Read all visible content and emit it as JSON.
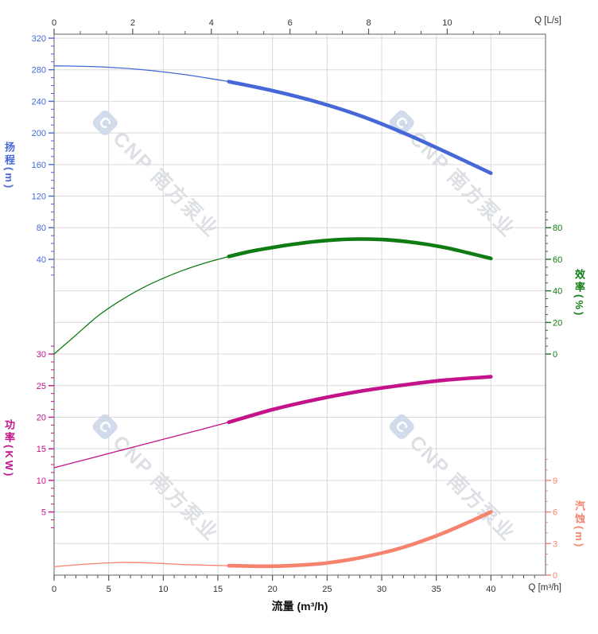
{
  "watermark": {
    "logo_char": "C",
    "text": "CNP 南方泵业",
    "logo_color": "#ccd7ea",
    "text_color": "#d9dce1"
  },
  "chart_data": {
    "type": "line",
    "title": "流量 (m³/h)",
    "grid": "on",
    "x_bottom": {
      "label": "Q [m³/h]",
      "min": 0,
      "max": 45,
      "major_ticks": [
        0,
        5,
        10,
        15,
        20,
        25,
        30,
        35,
        40
      ],
      "minor_step": 1,
      "tick_color": "#555555",
      "text_color": "#333333"
    },
    "x_top": {
      "label": "Q [L/s]",
      "m3h_per_unit": 3.6,
      "major_ticks": [
        0,
        2,
        4,
        6,
        8,
        10
      ],
      "minor_fraction_of_major": 3,
      "tick_color": "#555555",
      "text_color": "#333333"
    },
    "y_axes": [
      {
        "id": "head",
        "label": "扬程(m)",
        "color": "#4667D8",
        "major_ticks": [
          320,
          280,
          240,
          200,
          160,
          120,
          80,
          40
        ],
        "minor_step": 10
      },
      {
        "id": "eff",
        "label": "效率(%)",
        "color": "#0E7C12",
        "major_ticks": [
          80,
          60,
          40,
          20,
          0
        ],
        "minor_step": 5
      },
      {
        "id": "power",
        "label": "功率(KW)",
        "color": "#C4138A",
        "major_ticks": [
          30,
          25,
          20,
          15,
          10,
          5
        ],
        "minor_step": 1.25
      },
      {
        "id": "npsh",
        "label": "汽蚀(m)",
        "color": "#F5836E",
        "major_ticks": [
          9,
          6,
          3,
          0
        ],
        "minor_step": 1
      }
    ],
    "operating_range": {
      "q_from": 16,
      "q_to": 40
    },
    "series": [
      {
        "name": "head",
        "axis": "head",
        "color": "#4667D8",
        "thick_from": 16,
        "q": [
          0,
          4,
          8,
          12,
          16,
          20,
          24,
          28,
          32,
          36,
          40
        ],
        "v": [
          285,
          283.8,
          280.2,
          273.8,
          265,
          253.5,
          239.5,
          222,
          200,
          175,
          149
        ]
      },
      {
        "name": "efficiency",
        "axis": "eff",
        "color": "#0E7C12",
        "thick_from": 16,
        "q": [
          0,
          2,
          4,
          6,
          8,
          10,
          12,
          14,
          16,
          18,
          20,
          22,
          24,
          26,
          28,
          30,
          32,
          34,
          36,
          38,
          40
        ],
        "v": [
          0,
          12,
          24,
          33.5,
          41.5,
          48,
          53.5,
          58,
          61.8,
          65,
          67.5,
          69.6,
          71.3,
          72.4,
          72.8,
          72.5,
          71.4,
          69.6,
          67.1,
          63.9,
          60.5
        ]
      },
      {
        "name": "power",
        "axis": "power",
        "color": "#C4138A",
        "thick_from": 16,
        "q": [
          0,
          4,
          8,
          12,
          16,
          20,
          24,
          28,
          32,
          36,
          40
        ],
        "v": [
          12,
          13.8,
          15.6,
          17.4,
          19.2,
          21.2,
          22.8,
          24.1,
          25.1,
          25.9,
          26.4
        ]
      },
      {
        "name": "npsh",
        "axis": "npsh",
        "color": "#F5836E",
        "thick_from": 16,
        "q": [
          0,
          3,
          6,
          9,
          12,
          16,
          20,
          24,
          26,
          28,
          30,
          32,
          34,
          36,
          38,
          40
        ],
        "v": [
          0.8,
          1.05,
          1.2,
          1.15,
          1.0,
          0.9,
          0.85,
          1.05,
          1.3,
          1.65,
          2.1,
          2.65,
          3.35,
          4.15,
          5.05,
          6.0
        ]
      }
    ]
  }
}
